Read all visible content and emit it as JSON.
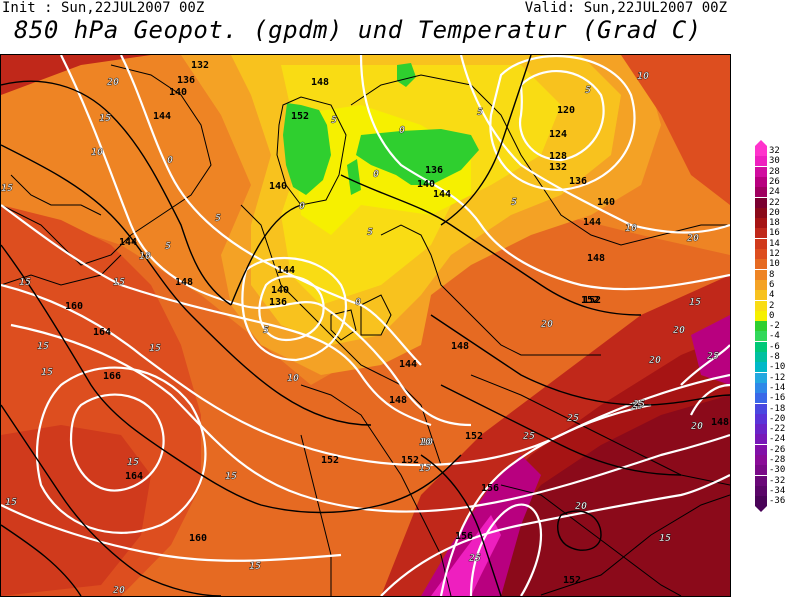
{
  "header": {
    "init": "Init : Sun,22JUL2007 00Z",
    "valid": "Valid: Sun,22JUL2007 00Z",
    "title": "850 hPa Geopot. (gpdm) und Temperatur (Grad C)"
  },
  "legend": {
    "labels": [
      "32",
      "30",
      "28",
      "26",
      "24",
      "22",
      "20",
      "18",
      "16",
      "14",
      "12",
      "10",
      "8",
      "6",
      "4",
      "2",
      "0",
      "-2",
      "-4",
      "-6",
      "-8",
      "-10",
      "-12",
      "-14",
      "-16",
      "-18",
      "-20",
      "-22",
      "-24",
      "-26",
      "-28",
      "-30",
      "-32",
      "-34",
      "-36"
    ],
    "colors": [
      "#ff33cc",
      "#ee1fbf",
      "#d10c9f",
      "#b8007f",
      "#a00060",
      "#7a0030",
      "#8b0a1a",
      "#a61414",
      "#c0281a",
      "#d03a1c",
      "#dd4e1f",
      "#e66a22",
      "#ee8424",
      "#f4a225",
      "#f8c21e",
      "#f9dc14",
      "#f6f000",
      "#2fcf2f",
      "#32d85a",
      "#00c878",
      "#00c0a0",
      "#00b8c8",
      "#24a8e0",
      "#2f88e8",
      "#3a68e8",
      "#4a48e0",
      "#5a34d8",
      "#6a24c8",
      "#7818b8",
      "#8210a8",
      "#8a0c98",
      "#7a0a88",
      "#6a0878",
      "#5a0668",
      "#4a0458"
    ]
  },
  "map": {
    "geopotential_labels": [
      "132",
      "136",
      "140",
      "144",
      "148",
      "120",
      "124",
      "128",
      "132",
      "136",
      "140",
      "144",
      "148",
      "152",
      "136",
      "140",
      "144",
      "140",
      "144",
      "148",
      "152",
      "160",
      "164",
      "166",
      "164",
      "160",
      "136",
      "140",
      "144",
      "148",
      "144",
      "148",
      "152",
      "152",
      "152",
      "156",
      "156",
      "152",
      "148",
      "152"
    ],
    "temperature_labels": [
      "20",
      "15",
      "10",
      "5",
      "0",
      "5",
      "0",
      "5",
      "0",
      "5",
      "10",
      "10",
      "15",
      "15",
      "15",
      "15",
      "10",
      "5",
      "0",
      "5",
      "5",
      "0",
      "5",
      "10",
      "15",
      "15",
      "15",
      "10",
      "15",
      "10",
      "20",
      "15",
      "15",
      "20",
      "20",
      "20",
      "25",
      "25",
      "25",
      "20",
      "25",
      "15",
      "20",
      "15",
      "25",
      "20",
      "25",
      "15"
    ]
  }
}
